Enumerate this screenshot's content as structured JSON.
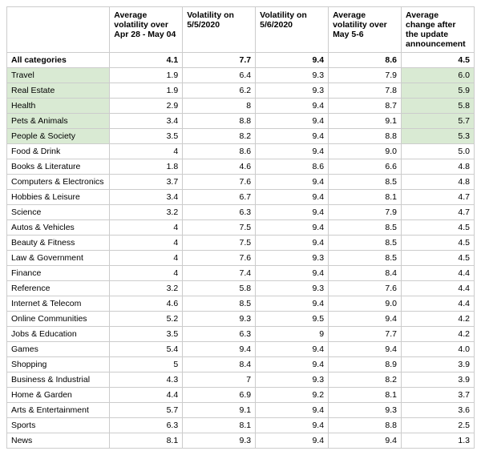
{
  "table": {
    "columns": [
      "",
      "Average volatility over Apr 28 - May 04",
      "Volatility on 5/5/2020",
      "Volatility on 5/6/2020",
      "Average volatility over May 5-6",
      "Average change after the update announcement"
    ],
    "summary": {
      "label": "All categories",
      "values": [
        "4.1",
        "7.7",
        "9.4",
        "8.6",
        "4.5"
      ]
    },
    "rows": [
      {
        "label": "Travel",
        "values": [
          "1.9",
          "6.4",
          "9.3",
          "7.9",
          "6.0"
        ],
        "highlighted": true
      },
      {
        "label": "Real Estate",
        "values": [
          "1.9",
          "6.2",
          "9.3",
          "7.8",
          "5.9"
        ],
        "highlighted": true
      },
      {
        "label": "Health",
        "values": [
          "2.9",
          "8",
          "9.4",
          "8.7",
          "5.8"
        ],
        "highlighted": true
      },
      {
        "label": "Pets & Animals",
        "values": [
          "3.4",
          "8.8",
          "9.4",
          "9.1",
          "5.7"
        ],
        "highlighted": true
      },
      {
        "label": "People & Society",
        "values": [
          "3.5",
          "8.2",
          "9.4",
          "8.8",
          "5.3"
        ],
        "highlighted": true
      },
      {
        "label": "Food & Drink",
        "values": [
          "4",
          "8.6",
          "9.4",
          "9.0",
          "5.0"
        ],
        "highlighted": false
      },
      {
        "label": "Books & Literature",
        "values": [
          "1.8",
          "4.6",
          "8.6",
          "6.6",
          "4.8"
        ],
        "highlighted": false
      },
      {
        "label": "Computers & Electronics",
        "values": [
          "3.7",
          "7.6",
          "9.4",
          "8.5",
          "4.8"
        ],
        "highlighted": false
      },
      {
        "label": "Hobbies & Leisure",
        "values": [
          "3.4",
          "6.7",
          "9.4",
          "8.1",
          "4.7"
        ],
        "highlighted": false
      },
      {
        "label": "Science",
        "values": [
          "3.2",
          "6.3",
          "9.4",
          "7.9",
          "4.7"
        ],
        "highlighted": false
      },
      {
        "label": "Autos & Vehicles",
        "values": [
          "4",
          "7.5",
          "9.4",
          "8.5",
          "4.5"
        ],
        "highlighted": false
      },
      {
        "label": "Beauty & Fitness",
        "values": [
          "4",
          "7.5",
          "9.4",
          "8.5",
          "4.5"
        ],
        "highlighted": false
      },
      {
        "label": "Law & Government",
        "values": [
          "4",
          "7.6",
          "9.3",
          "8.5",
          "4.5"
        ],
        "highlighted": false
      },
      {
        "label": "Finance",
        "values": [
          "4",
          "7.4",
          "9.4",
          "8.4",
          "4.4"
        ],
        "highlighted": false
      },
      {
        "label": "Reference",
        "values": [
          "3.2",
          "5.8",
          "9.3",
          "7.6",
          "4.4"
        ],
        "highlighted": false
      },
      {
        "label": "Internet & Telecom",
        "values": [
          "4.6",
          "8.5",
          "9.4",
          "9.0",
          "4.4"
        ],
        "highlighted": false
      },
      {
        "label": "Online Communities",
        "values": [
          "5.2",
          "9.3",
          "9.5",
          "9.4",
          "4.2"
        ],
        "highlighted": false
      },
      {
        "label": "Jobs & Education",
        "values": [
          "3.5",
          "6.3",
          "9",
          "7.7",
          "4.2"
        ],
        "highlighted": false
      },
      {
        "label": "Games",
        "values": [
          "5.4",
          "9.4",
          "9.4",
          "9.4",
          "4.0"
        ],
        "highlighted": false
      },
      {
        "label": "Shopping",
        "values": [
          "5",
          "8.4",
          "9.4",
          "8.9",
          "3.9"
        ],
        "highlighted": false
      },
      {
        "label": "Business & Industrial",
        "values": [
          "4.3",
          "7",
          "9.3",
          "8.2",
          "3.9"
        ],
        "highlighted": false
      },
      {
        "label": "Home & Garden",
        "values": [
          "4.4",
          "6.9",
          "9.2",
          "8.1",
          "3.7"
        ],
        "highlighted": false
      },
      {
        "label": "Arts & Entertainment",
        "values": [
          "5.7",
          "9.1",
          "9.4",
          "9.3",
          "3.6"
        ],
        "highlighted": false
      },
      {
        "label": "Sports",
        "values": [
          "6.3",
          "8.1",
          "9.4",
          "8.8",
          "2.5"
        ],
        "highlighted": false
      },
      {
        "label": "News",
        "values": [
          "8.1",
          "9.3",
          "9.4",
          "9.4",
          "1.3"
        ],
        "highlighted": false
      }
    ],
    "highlight_color": "#d9ead3",
    "border_color": "#cccccc",
    "font_family": "Arial",
    "header_fontsize": 10.5,
    "cell_fontsize": 10.5
  }
}
